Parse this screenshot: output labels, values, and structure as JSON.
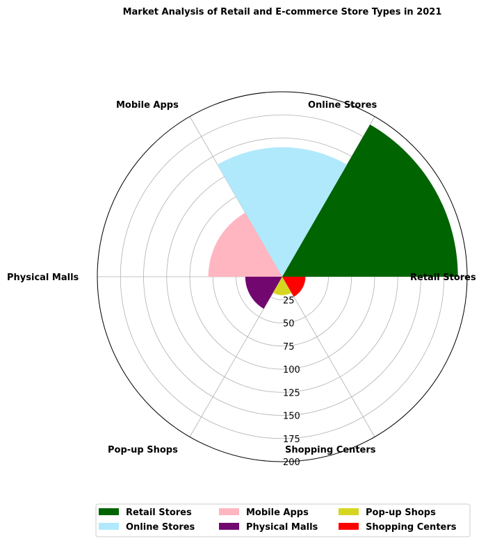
{
  "chart_data": {
    "type": "polar-bar",
    "title": "Market Analysis of Retail and E-commerce Store Types in 2021",
    "categories": [
      "Retail Stores",
      "Online Stores",
      "Mobile Apps",
      "Physical Malls",
      "Pop-up Shops",
      "Shopping Centers"
    ],
    "values": [
      190,
      140,
      80,
      40,
      20,
      25
    ],
    "colors": [
      "#006400",
      "#b0e9fc",
      "#ffb6c1",
      "#72086f",
      "#d6d622",
      "#ff0000"
    ],
    "r_ticks": [
      "25",
      "50",
      "75",
      "100",
      "125",
      "150",
      "175",
      "200"
    ],
    "r_max": 200,
    "grid": true,
    "legend_position": "bottom",
    "legend_columns": 3,
    "legend": [
      "Retail Stores",
      "Online Stores",
      "Mobile Apps",
      "Physical Malls",
      "Pop-up Shops",
      "Shopping Centers"
    ]
  }
}
